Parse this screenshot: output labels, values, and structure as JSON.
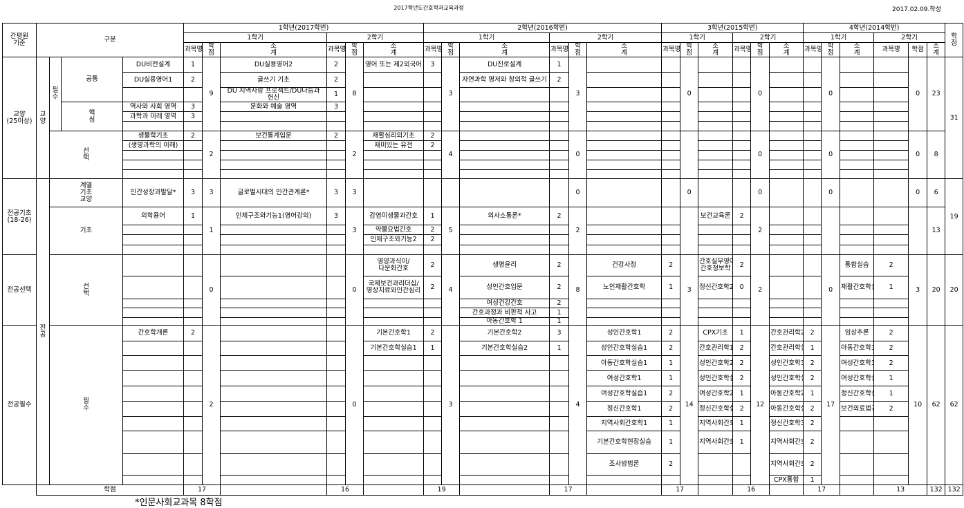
{
  "title": "2017학년도간호학과교육과정",
  "date": "2017.02.09.작성",
  "header": {
    "standard": "간평원 기준",
    "category": "구분",
    "course_name": "과목명",
    "credit": "학점",
    "subtotal": "소계",
    "total_credit": "학점",
    "grand_credit": "학점"
  },
  "years": [
    "1학년(2017학번)",
    "2학년(2016학번)",
    "3학년(2015학번)",
    "4학년(2014학번)"
  ],
  "standards": [
    "교양(25이상)",
    "전공기초(18-26)",
    "전공선택",
    "전공필수"
  ],
  "areas": [
    "교양",
    "전공"
  ],
  "groups": {
    "required": "필수",
    "common": "공통",
    "core": "핵심",
    "elective": "선택",
    "liberal_basic": "계열기초교양",
    "basic": "기초",
    "major_elective": "선택",
    "major_required": "필수"
  },
  "semesters": [
    {
      "term": "1학기",
      "total": "17",
      "subtotals": [
        "9",
        "2",
        "3",
        "1",
        "0",
        "2"
      ],
      "courses": [
        [
          "DU비전설계",
          "1"
        ],
        [
          "DU실용영어1",
          "2"
        ],
        [
          "",
          ""
        ],
        [
          "역사와 사회 영역",
          "3"
        ],
        [
          "과학과 미래 영역",
          "3"
        ],
        [
          "",
          ""
        ],
        [
          "생물학기초",
          "2"
        ],
        [
          "(생명과학의 이해)",
          ""
        ],
        [
          "",
          ""
        ],
        [
          "",
          ""
        ],
        [
          "",
          ""
        ],
        [
          "인간성장과발달*",
          "3"
        ],
        [
          "의학용어",
          "1"
        ],
        [
          "",
          ""
        ],
        [
          "",
          ""
        ],
        [
          "",
          ""
        ],
        [
          "",
          ""
        ],
        [
          "",
          ""
        ],
        [
          "",
          ""
        ],
        [
          "",
          ""
        ],
        [
          "",
          ""
        ],
        [
          "간호학개론",
          "2"
        ],
        [
          "",
          ""
        ],
        [
          "",
          ""
        ],
        [
          "",
          ""
        ],
        [
          "",
          ""
        ],
        [
          "",
          ""
        ],
        [
          "",
          ""
        ],
        [
          "",
          ""
        ],
        [
          "",
          ""
        ],
        [
          "",
          ""
        ]
      ]
    },
    {
      "term": "2학기",
      "total": "16",
      "subtotals": [
        "8",
        "2",
        "3",
        "3",
        "0",
        "0"
      ],
      "courses": [
        [
          "DU실용영어2",
          "2"
        ],
        [
          "글쓰기 기초",
          "2"
        ],
        [
          "DU 지역사랑 프로젝트/DU나눔과 헌신",
          "1"
        ],
        [
          "문화와 예술 영역",
          "3"
        ],
        [
          "",
          ""
        ],
        [
          "",
          ""
        ],
        [
          "보건통계입문",
          "2"
        ],
        [
          "",
          ""
        ],
        [
          "",
          ""
        ],
        [
          "",
          ""
        ],
        [
          "",
          ""
        ],
        [
          "글로벌시대의 인간관계론*",
          "3"
        ],
        [
          "인체구조와기능1(영어강의)",
          "3"
        ],
        [
          "",
          ""
        ],
        [
          "",
          ""
        ],
        [
          "",
          ""
        ],
        [
          "",
          ""
        ],
        [
          "",
          ""
        ],
        [
          "",
          ""
        ],
        [
          "",
          ""
        ],
        [
          "",
          ""
        ],
        [
          "",
          ""
        ],
        [
          "",
          ""
        ],
        [
          "",
          ""
        ],
        [
          "",
          ""
        ],
        [
          "",
          ""
        ],
        [
          "",
          ""
        ],
        [
          "",
          ""
        ],
        [
          "",
          ""
        ],
        [
          "",
          ""
        ],
        [
          "",
          ""
        ]
      ]
    },
    {
      "term": "1학기",
      "total": "19",
      "subtotals": [
        "3",
        "4",
        "",
        "5",
        "4",
        "3"
      ],
      "courses": [
        [
          "영어 또는 제2외국어",
          "3"
        ],
        [
          "",
          ""
        ],
        [
          "",
          ""
        ],
        [
          "",
          ""
        ],
        [
          "",
          ""
        ],
        [
          "",
          ""
        ],
        [
          "재활심리의기초",
          "2"
        ],
        [
          "재미있는 유전",
          "2"
        ],
        [
          "",
          ""
        ],
        [
          "",
          ""
        ],
        [
          "",
          ""
        ],
        [
          "",
          ""
        ],
        [
          "감염미생물과간호",
          "1"
        ],
        [
          "약물요법간호",
          "2"
        ],
        [
          "인체구조와기능2",
          "2"
        ],
        [
          "",
          ""
        ],
        [
          "영양과식이/다문화간호",
          "2"
        ],
        [
          "국제보건과리더십/명상치료와인간심리",
          "2"
        ],
        [
          "",
          ""
        ],
        [
          "",
          ""
        ],
        [
          "",
          ""
        ],
        [
          "기본간호학1",
          "2"
        ],
        [
          "기본간호학실습1",
          "1"
        ],
        [
          "",
          ""
        ],
        [
          "",
          ""
        ],
        [
          "",
          ""
        ],
        [
          "",
          ""
        ],
        [
          "",
          ""
        ],
        [
          "",
          ""
        ],
        [
          "",
          ""
        ],
        [
          "",
          ""
        ]
      ]
    },
    {
      "term": "2학기",
      "total": "17",
      "subtotals": [
        "3",
        "0",
        "0",
        "2",
        "8",
        "4"
      ],
      "courses": [
        [
          "DU진로설계",
          "1"
        ],
        [
          "자연과학 명저와 창의적 글쓰기",
          "2"
        ],
        [
          "",
          ""
        ],
        [
          "",
          ""
        ],
        [
          "",
          ""
        ],
        [
          "",
          ""
        ],
        [
          "",
          ""
        ],
        [
          "",
          ""
        ],
        [
          "",
          ""
        ],
        [
          "",
          ""
        ],
        [
          "",
          ""
        ],
        [
          "",
          ""
        ],
        [
          "의사소통론*",
          "2"
        ],
        [
          "",
          ""
        ],
        [
          "",
          ""
        ],
        [
          "",
          ""
        ],
        [
          "생명윤리",
          "2"
        ],
        [
          "성인간호입문",
          "2"
        ],
        [
          "여성건강간호",
          "2"
        ],
        [
          "간호과정과 비판적 사고",
          "1"
        ],
        [
          "아동간호학 1",
          "1"
        ],
        [
          "기본간호학2",
          "3"
        ],
        [
          "기본간호학실습2",
          "1"
        ],
        [
          "",
          ""
        ],
        [
          "",
          ""
        ],
        [
          "",
          ""
        ],
        [
          "",
          ""
        ],
        [
          "",
          ""
        ],
        [
          "",
          ""
        ],
        [
          "",
          ""
        ],
        [
          "",
          ""
        ]
      ]
    },
    {
      "term": "1학기",
      "total": "17",
      "subtotals": [
        "0",
        "",
        "0",
        "",
        "3",
        "14"
      ],
      "courses": [
        [
          "",
          ""
        ],
        [
          "",
          ""
        ],
        [
          "",
          ""
        ],
        [
          "",
          ""
        ],
        [
          "",
          ""
        ],
        [
          "",
          ""
        ],
        [
          "",
          ""
        ],
        [
          "",
          ""
        ],
        [
          "",
          ""
        ],
        [
          "",
          ""
        ],
        [
          "",
          ""
        ],
        [
          "",
          ""
        ],
        [
          "",
          ""
        ],
        [
          "",
          ""
        ],
        [
          "",
          ""
        ],
        [
          "",
          ""
        ],
        [
          "건강사정",
          "2"
        ],
        [
          "노인재활간호학",
          "1"
        ],
        [
          "",
          ""
        ],
        [
          "",
          ""
        ],
        [
          "",
          ""
        ],
        [
          "성인간호학1",
          "2"
        ],
        [
          "성인간호학실습1",
          "2"
        ],
        [
          "아동간호학실습1",
          "1"
        ],
        [
          "여성간호학1",
          "1"
        ],
        [
          "여성간호학실습1",
          "2"
        ],
        [
          "정신간호학1",
          "2"
        ],
        [
          "지역사회간호학1",
          "1"
        ],
        [
          "기본간호학현장실습",
          "1"
        ],
        [
          "조사방법론",
          "2"
        ],
        [
          "",
          ""
        ]
      ]
    },
    {
      "term": "2학기",
      "total": "16",
      "subtotals": [
        "0",
        "0",
        "0",
        "2",
        "2",
        "12"
      ],
      "courses": [
        [
          "",
          ""
        ],
        [
          "",
          ""
        ],
        [
          "",
          ""
        ],
        [
          "",
          ""
        ],
        [
          "",
          ""
        ],
        [
          "",
          ""
        ],
        [
          "",
          ""
        ],
        [
          "",
          ""
        ],
        [
          "",
          ""
        ],
        [
          "",
          ""
        ],
        [
          "",
          ""
        ],
        [
          "",
          ""
        ],
        [
          "보건교육론",
          "2"
        ],
        [
          "",
          ""
        ],
        [
          "",
          ""
        ],
        [
          "",
          ""
        ],
        [
          "간호실무영어/간호정보학",
          "2"
        ],
        [
          "정신간호학2",
          "0"
        ],
        [
          "",
          ""
        ],
        [
          "",
          ""
        ],
        [
          "",
          ""
        ],
        [
          "CPX기초",
          "1"
        ],
        [
          "간호관리학1",
          "2"
        ],
        [
          "성인간호학2",
          "2"
        ],
        [
          "성인간호학실습2",
          "2"
        ],
        [
          "여성간호학2",
          "1"
        ],
        [
          "정신간호학실습1",
          "2"
        ],
        [
          "지역사회간호학2",
          "1"
        ],
        [
          "지역사회간호학실습1",
          "1"
        ],
        [
          "",
          ""
        ],
        [
          "",
          ""
        ]
      ]
    },
    {
      "term": "1학기",
      "total": "17",
      "subtotals": [
        "0",
        "0",
        "0",
        "",
        "0",
        "17"
      ],
      "courses": [
        [
          "",
          ""
        ],
        [
          "",
          ""
        ],
        [
          "",
          ""
        ],
        [
          "",
          ""
        ],
        [
          "",
          ""
        ],
        [
          "",
          ""
        ],
        [
          "",
          ""
        ],
        [
          "",
          ""
        ],
        [
          "",
          ""
        ],
        [
          "",
          ""
        ],
        [
          "",
          ""
        ],
        [
          "",
          ""
        ],
        [
          "",
          ""
        ],
        [
          "",
          ""
        ],
        [
          "",
          ""
        ],
        [
          "",
          ""
        ],
        [
          "",
          ""
        ],
        [
          "",
          ""
        ],
        [
          "",
          ""
        ],
        [
          "",
          ""
        ],
        [
          "",
          ""
        ],
        [
          "간호관리학2",
          "2"
        ],
        [
          "간호관리학실습",
          "1"
        ],
        [
          "성인간호학3",
          "2"
        ],
        [
          "성인간호학실습3",
          "2"
        ],
        [
          "아동간호학2",
          "1"
        ],
        [
          "아동간호학실습2",
          "2"
        ],
        [
          "정신간호학3",
          "2"
        ],
        [
          "지역사회간호학3",
          "2"
        ],
        [
          "지역사회간호학실습2",
          "2"
        ],
        [
          "CPX통합",
          "1"
        ]
      ]
    },
    {
      "term": "2학기",
      "total": "13",
      "subtotals": [
        "0",
        "0",
        "0",
        "",
        "3",
        "10"
      ],
      "courses": [
        [
          "",
          ""
        ],
        [
          "",
          ""
        ],
        [
          "",
          ""
        ],
        [
          "",
          ""
        ],
        [
          "",
          ""
        ],
        [
          "",
          ""
        ],
        [
          "",
          ""
        ],
        [
          "",
          ""
        ],
        [
          "",
          ""
        ],
        [
          "",
          ""
        ],
        [
          "",
          ""
        ],
        [
          "",
          ""
        ],
        [
          "",
          ""
        ],
        [
          "",
          ""
        ],
        [
          "",
          ""
        ],
        [
          "",
          ""
        ],
        [
          "통합실습",
          "2"
        ],
        [
          "재활간호학실습",
          "1"
        ],
        [
          "",
          ""
        ],
        [
          "",
          ""
        ],
        [
          "",
          ""
        ],
        [
          "임상추론",
          "2"
        ],
        [
          "아동간호학3",
          "2"
        ],
        [
          "여성간호학3",
          "2"
        ],
        [
          "여성간호학실습2",
          "1"
        ],
        [
          "정신간호학실습2",
          "1"
        ],
        [
          "보건의료법규",
          "2"
        ],
        [
          "",
          ""
        ],
        [
          "",
          ""
        ],
        [
          "",
          ""
        ],
        [
          "",
          ""
        ]
      ]
    }
  ],
  "group_totals": [
    "23",
    "8",
    "6",
    "13",
    "20",
    "62"
  ],
  "grand_totals": [
    "31",
    "19",
    "20",
    "62"
  ],
  "footer": {
    "label": "학점",
    "total": "132",
    "grand_total": "132"
  },
  "footnote": "*인문사회교과목 8학점"
}
